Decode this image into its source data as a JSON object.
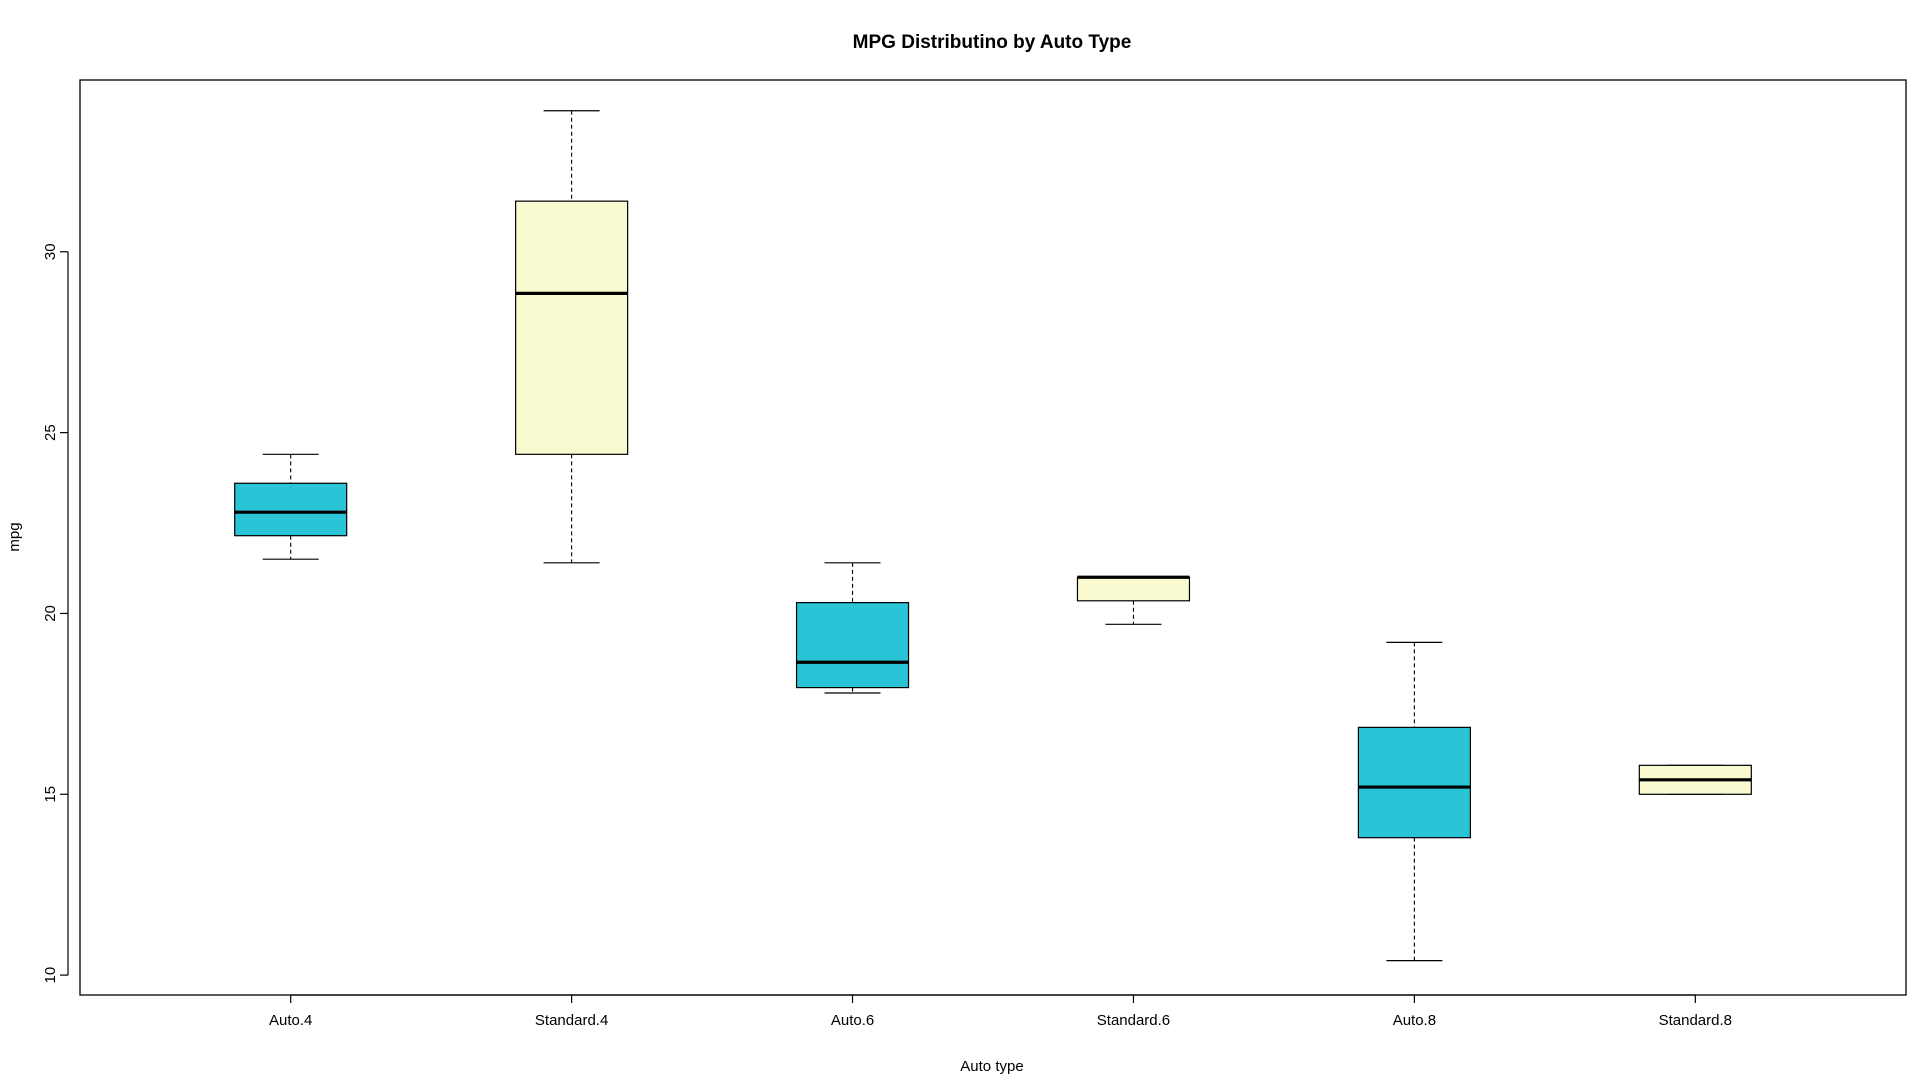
{
  "chart_data": {
    "type": "box",
    "title": "MPG Distributino by Auto Type",
    "xlabel": "Auto type",
    "ylabel": "mpg",
    "ylim": [
      9.45,
      34.75
    ],
    "y_ticks": [
      10,
      15,
      20,
      25,
      30
    ],
    "grid": false,
    "legend": "none",
    "categories": [
      "Auto.4",
      "Standard.4",
      "Auto.6",
      "Standard.6",
      "Auto.8",
      "Standard.8"
    ],
    "boxes": [
      {
        "category": "Auto.4",
        "lower_whisker": 21.5,
        "q1": 22.15,
        "median": 22.8,
        "q3": 23.6,
        "upper_whisker": 24.4,
        "color": "#29C4D6"
      },
      {
        "category": "Standard.4",
        "lower_whisker": 21.4,
        "q1": 24.4,
        "median": 28.85,
        "q3": 31.4,
        "upper_whisker": 33.9,
        "color": "#FAFAD1"
      },
      {
        "category": "Auto.6",
        "lower_whisker": 17.8,
        "q1": 17.95,
        "median": 18.65,
        "q3": 20.3,
        "upper_whisker": 21.4,
        "color": "#29C4D6"
      },
      {
        "category": "Standard.6",
        "lower_whisker": 19.7,
        "q1": 20.35,
        "median": 21.0,
        "q3": 21.0,
        "upper_whisker": 21.0,
        "color": "#FAFAD1"
      },
      {
        "category": "Auto.8",
        "lower_whisker": 10.4,
        "q1": 13.8,
        "median": 15.2,
        "q3": 16.85,
        "upper_whisker": 19.2,
        "color": "#29C4D6"
      },
      {
        "category": "Standard.8",
        "lower_whisker": 15.0,
        "q1": 15.0,
        "median": 15.4,
        "q3": 15.8,
        "upper_whisker": 15.8,
        "color": "#FAFAD1"
      }
    ]
  }
}
